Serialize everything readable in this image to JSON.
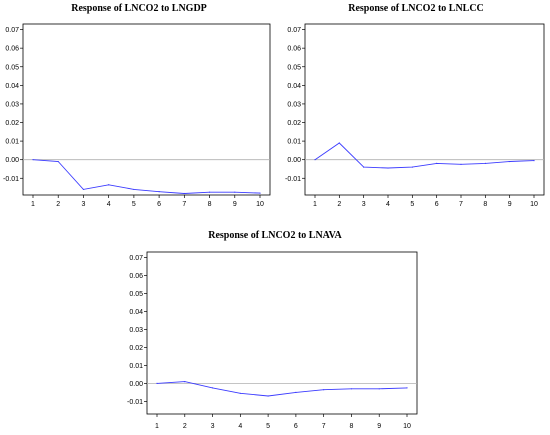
{
  "colors": {
    "series": "#3b3bff",
    "zero_line": "#b0b0b0",
    "frame": "#000000"
  },
  "chart_data": [
    {
      "type": "line",
      "title": "Response of LNCO2 to LNGDP",
      "x": [
        1,
        2,
        3,
        4,
        5,
        6,
        7,
        8,
        9,
        10
      ],
      "x_ticks": [
        "1",
        "2",
        "3",
        "4",
        "5",
        "6",
        "7",
        "8",
        "9",
        "10"
      ],
      "y_ticks": [
        "0.07",
        "0.06",
        "0.05",
        "0.04",
        "0.03",
        "0.02",
        "0.01",
        "0.00",
        "-0.01"
      ],
      "ylim": [
        -0.019,
        0.073
      ],
      "grid": false,
      "series": [
        {
          "values": [
            0.0,
            -0.001,
            -0.016,
            -0.0135,
            -0.016,
            -0.0172,
            -0.0182,
            -0.0175,
            -0.0175,
            -0.018
          ]
        }
      ]
    },
    {
      "type": "line",
      "title": "Response of LNCO2 to LNLCC",
      "x": [
        1,
        2,
        3,
        4,
        5,
        6,
        7,
        8,
        9,
        10
      ],
      "x_ticks": [
        "1",
        "2",
        "3",
        "4",
        "5",
        "6",
        "7",
        "8",
        "9",
        "10"
      ],
      "y_ticks": [
        "0.07",
        "0.06",
        "0.05",
        "0.04",
        "0.03",
        "0.02",
        "0.01",
        "0.00",
        "-0.01"
      ],
      "ylim": [
        -0.019,
        0.073
      ],
      "grid": false,
      "series": [
        {
          "values": [
            0.0,
            0.009,
            -0.004,
            -0.0045,
            -0.004,
            -0.002,
            -0.0025,
            -0.002,
            -0.001,
            -0.0005
          ]
        }
      ]
    },
    {
      "type": "line",
      "title": "Response of LNCO2 to LNAVA",
      "x": [
        1,
        2,
        3,
        4,
        5,
        6,
        7,
        8,
        9,
        10
      ],
      "x_ticks": [
        "1",
        "2",
        "3",
        "4",
        "5",
        "6",
        "7",
        "8",
        "9",
        "10"
      ],
      "y_ticks": [
        "0.07",
        "0.06",
        "0.05",
        "0.04",
        "0.03",
        "0.02",
        "0.01",
        "0.00",
        "-0.01"
      ],
      "ylim": [
        -0.017,
        0.073
      ],
      "grid": false,
      "series": [
        {
          "values": [
            0.0,
            0.001,
            -0.0025,
            -0.0055,
            -0.007,
            -0.005,
            -0.0035,
            -0.003,
            -0.003,
            -0.0025
          ]
        }
      ]
    }
  ]
}
